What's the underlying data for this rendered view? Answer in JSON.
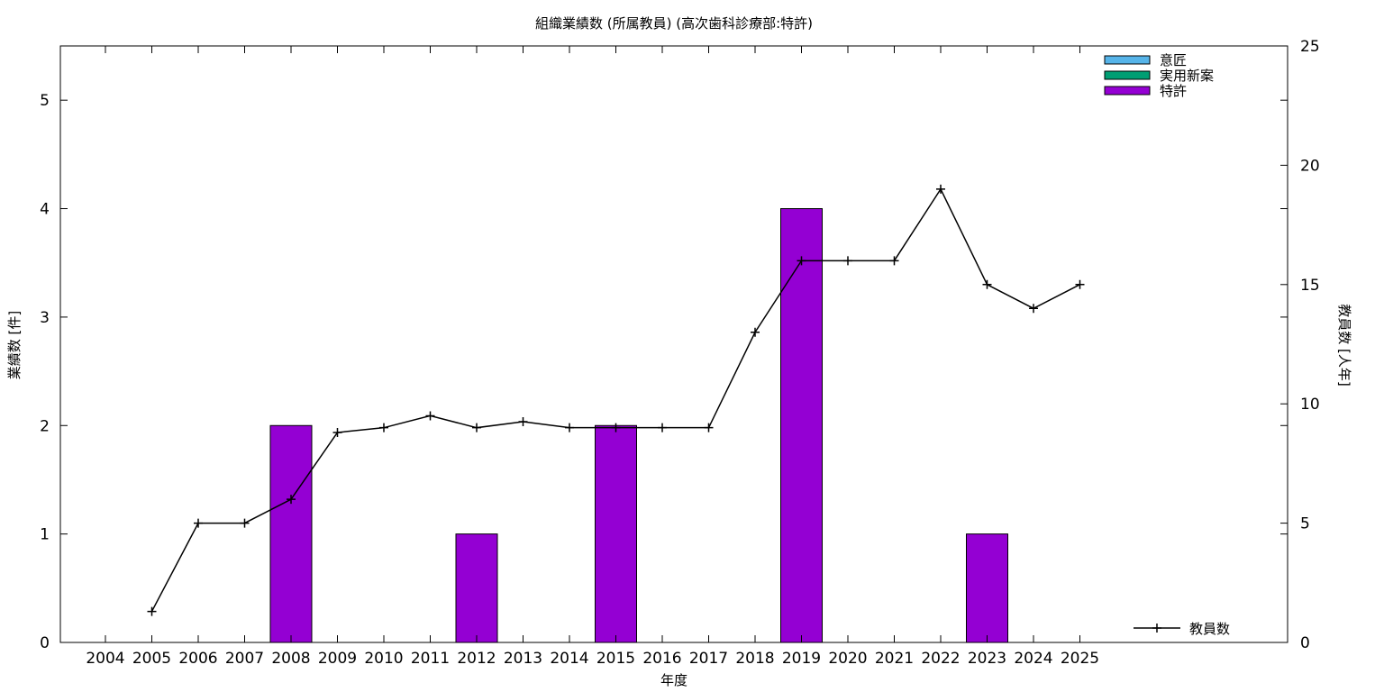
{
  "chart_data": {
    "type": "bar",
    "title": "組織業績数 (所属教員) (高次歯科診療部:特許)",
    "xlabel": "年度",
    "ylabel": "業績数 [件]",
    "y2label": "教員数 [人年]",
    "categories": [
      "2004",
      "2005",
      "2006",
      "2007",
      "2008",
      "2009",
      "2010",
      "2011",
      "2012",
      "2013",
      "2014",
      "2015",
      "2016",
      "2017",
      "2018",
      "2019",
      "2020",
      "2021",
      "2022",
      "2023",
      "2024",
      "2025"
    ],
    "ylim": [
      0,
      5.5
    ],
    "y_ticks": [
      "0",
      "1",
      "2",
      "3",
      "4",
      "5"
    ],
    "y2lim": [
      0,
      25
    ],
    "y2_ticks": [
      "0",
      "5",
      "10",
      "15",
      "20",
      "25"
    ],
    "grid": false,
    "legend_position": "top-right",
    "series": [
      {
        "name": "意匠",
        "kind": "bar",
        "color": "#56b4e9",
        "values": [
          0,
          0,
          0,
          0,
          0,
          0,
          0,
          0,
          0,
          0,
          0,
          0,
          0,
          0,
          0,
          0,
          0,
          0,
          0,
          0,
          0,
          0
        ]
      },
      {
        "name": "実用新案",
        "kind": "bar",
        "color": "#009e73",
        "values": [
          0,
          0,
          0,
          0,
          0,
          0,
          0,
          0,
          0,
          0,
          0,
          0,
          0,
          0,
          0,
          0,
          0,
          0,
          0,
          0,
          0,
          0
        ]
      },
      {
        "name": "特許",
        "kind": "bar",
        "color": "#9400d3",
        "values": [
          0,
          0,
          0,
          0,
          2,
          0,
          0,
          0,
          1,
          0,
          0,
          2,
          0,
          0,
          0,
          4,
          0,
          0,
          0,
          1,
          0,
          0
        ]
      }
    ],
    "line_series": {
      "name": "教員数",
      "axis": "y2",
      "color": "#000000",
      "legend_position": "bottom-right",
      "points": [
        {
          "x": "2005",
          "y": 1.3
        },
        {
          "x": "2006",
          "y": 5.0
        },
        {
          "x": "2007",
          "y": 5.0
        },
        {
          "x": "2008",
          "y": 6.0
        },
        {
          "x": "2009",
          "y": 8.8
        },
        {
          "x": "2010",
          "y": 9.0
        },
        {
          "x": "2011",
          "y": 9.5
        },
        {
          "x": "2012",
          "y": 9.0
        },
        {
          "x": "2013",
          "y": 9.25
        },
        {
          "x": "2014",
          "y": 9.0
        },
        {
          "x": "2015",
          "y": 9.0
        },
        {
          "x": "2016",
          "y": 9.0
        },
        {
          "x": "2017",
          "y": 9.0
        },
        {
          "x": "2018",
          "y": 13.0
        },
        {
          "x": "2019",
          "y": 16.0
        },
        {
          "x": "2020",
          "y": 16.0
        },
        {
          "x": "2021",
          "y": 16.0
        },
        {
          "x": "2022",
          "y": 19.0
        },
        {
          "x": "2023",
          "y": 15.0
        },
        {
          "x": "2024",
          "y": 14.0
        },
        {
          "x": "2025",
          "y": 15.0
        }
      ]
    }
  }
}
